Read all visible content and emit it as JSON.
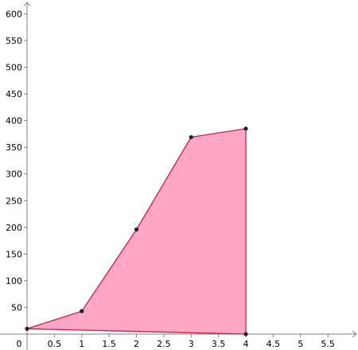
{
  "chart_data": {
    "type": "area",
    "title": "",
    "xlabel": "",
    "ylabel": "",
    "xlim": [
      0,
      6.05
    ],
    "ylim": [
      0,
      626
    ],
    "x_ticks": [
      0.5,
      1,
      1.5,
      2,
      2.5,
      3,
      3.5,
      4,
      4.5,
      5,
      5.5
    ],
    "x_tick_labels": [
      "0.5",
      "1",
      "1.5",
      "2",
      "2.5",
      "3",
      "3.5",
      "4",
      "4.5",
      "5",
      "5.5"
    ],
    "y_ticks": [
      50,
      100,
      150,
      200,
      250,
      300,
      350,
      400,
      450,
      500,
      550,
      600
    ],
    "y_tick_labels": [
      "50",
      "100",
      "150",
      "200",
      "250",
      "300",
      "350",
      "400",
      "450",
      "500",
      "550",
      "600"
    ],
    "origin_label": "0",
    "grid": false,
    "series": [
      {
        "x": [
          0,
          1,
          2,
          3,
          4,
          4
        ],
        "y": [
          10,
          43,
          196,
          369,
          385,
          0
        ]
      }
    ],
    "fill_color": "#ffa6c4",
    "line_color": "#cc1d45",
    "point_color": "#222222",
    "axis_color": "#808080"
  }
}
